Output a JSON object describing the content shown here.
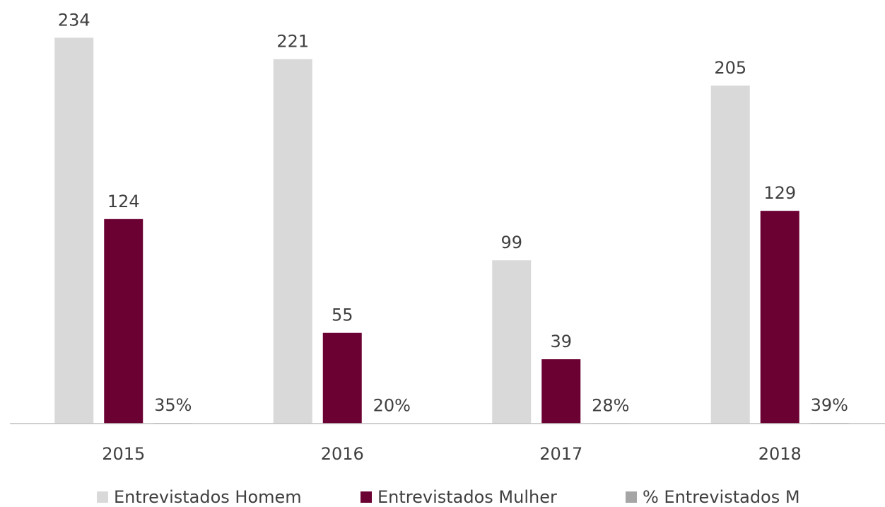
{
  "chart_data": {
    "type": "bar",
    "categories": [
      "2015",
      "2016",
      "2017",
      "2018"
    ],
    "series": [
      {
        "name": "Entrevistados Homem",
        "color": "#d9d9d9",
        "values": [
          234,
          221,
          99,
          205
        ]
      },
      {
        "name": "Entrevistados Mulher",
        "color": "#6b0033",
        "values": [
          124,
          55,
          39,
          129
        ]
      },
      {
        "name": "% Entrevistados M",
        "color": "#a5a5a5",
        "values": [
          0.35,
          0.2,
          0.28,
          0.39
        ],
        "value_labels": [
          "35%",
          "20%",
          "28%",
          "39%"
        ]
      }
    ],
    "ylim": [
      0,
      250
    ],
    "legend": "bottom"
  }
}
